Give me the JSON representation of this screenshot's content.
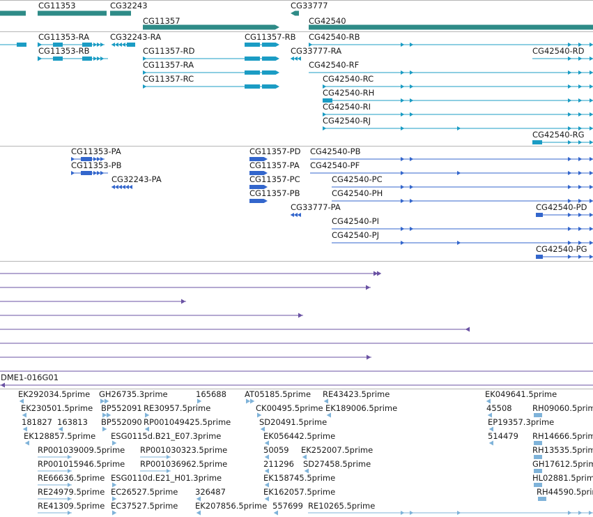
{
  "colors": {
    "gene": "#2e8b87",
    "transcript": "#1b9cc4",
    "protein": "#3366cc",
    "alignment": "#6a52a3",
    "est": "#7fb3d9",
    "divider": "#b5b5b5"
  },
  "tracks": {
    "genes": {
      "labels": [
        {
          "id": "g-cg11353",
          "text": "CG11353"
        },
        {
          "id": "g-cg32243",
          "text": "CG32243"
        },
        {
          "id": "g-cg11357",
          "text": "CG11357"
        },
        {
          "id": "g-cg33777",
          "text": "CG33777"
        },
        {
          "id": "g-cg42540",
          "text": "CG42540"
        }
      ]
    },
    "transcripts": {
      "labels": [
        {
          "id": "t-cg11353-ra",
          "text": "CG11353-RA"
        },
        {
          "id": "t-cg11353-rb",
          "text": "CG11353-RB"
        },
        {
          "id": "t-cg32243-ra",
          "text": "CG32243-RA"
        },
        {
          "id": "t-cg11357-rb",
          "text": "CG11357-RB"
        },
        {
          "id": "t-cg11357-rd",
          "text": "CG11357-RD"
        },
        {
          "id": "t-cg11357-ra",
          "text": "CG11357-RA"
        },
        {
          "id": "t-cg11357-rc",
          "text": "CG11357-RC"
        },
        {
          "id": "t-cg42540-rb",
          "text": "CG42540-RB"
        },
        {
          "id": "t-cg33777-ra",
          "text": "CG33777-RA"
        },
        {
          "id": "t-cg42540-rf",
          "text": "CG42540-RF"
        },
        {
          "id": "t-cg42540-rc",
          "text": "CG42540-RC"
        },
        {
          "id": "t-cg42540-rh",
          "text": "CG42540-RH"
        },
        {
          "id": "t-cg42540-ri",
          "text": "CG42540-RI"
        },
        {
          "id": "t-cg42540-rj",
          "text": "CG42540-RJ"
        },
        {
          "id": "t-cg42540-rd",
          "text": "CG42540-RD"
        },
        {
          "id": "t-cg42540-rg",
          "text": "CG42540-RG"
        }
      ]
    },
    "proteins": {
      "labels": [
        {
          "id": "p-cg11353-pa",
          "text": "CG11353-PA"
        },
        {
          "id": "p-cg11353-pb",
          "text": "CG11353-PB"
        },
        {
          "id": "p-cg32243-pa",
          "text": "CG32243-PA"
        },
        {
          "id": "p-cg11357-pd",
          "text": "CG11357-PD"
        },
        {
          "id": "p-cg11357-pa",
          "text": "CG11357-PA"
        },
        {
          "id": "p-cg11357-pc",
          "text": "CG11357-PC"
        },
        {
          "id": "p-cg11357-pb",
          "text": "CG11357-PB"
        },
        {
          "id": "p-cg33777-pa",
          "text": "CG33777-PA"
        },
        {
          "id": "p-cg42540-pb",
          "text": "CG42540-PB"
        },
        {
          "id": "p-cg42540-pf",
          "text": "CG42540-PF"
        },
        {
          "id": "p-cg42540-pc",
          "text": "CG42540-PC"
        },
        {
          "id": "p-cg42540-ph",
          "text": "CG42540-PH"
        },
        {
          "id": "p-cg42540-pi",
          "text": "CG42540-PI"
        },
        {
          "id": "p-cg42540-pj",
          "text": "CG42540-PJ"
        },
        {
          "id": "p-cg42540-pd",
          "text": "CG42540-PD"
        },
        {
          "id": "p-cg42540-pg",
          "text": "CG42540-PG"
        }
      ]
    },
    "alignments": {
      "labels": [
        {
          "id": "a-dme1-016g01",
          "text": "DME1-016G01"
        }
      ]
    },
    "ests": {
      "labels": [
        {
          "id": "e1",
          "text": "EK292034.5prime"
        },
        {
          "id": "e2",
          "text": "GH26735.3prime"
        },
        {
          "id": "e3",
          "text": "165688"
        },
        {
          "id": "e4",
          "text": "AT05185.5prime"
        },
        {
          "id": "e5",
          "text": "RE43423.5prime"
        },
        {
          "id": "e6",
          "text": "EK049641.5prime"
        },
        {
          "id": "e7",
          "text": "EK230501.5prime"
        },
        {
          "id": "e8",
          "text": "BP552091"
        },
        {
          "id": "e9",
          "text": "RE30957.5prime"
        },
        {
          "id": "e10",
          "text": "CK00495.5prime"
        },
        {
          "id": "e11",
          "text": "EK189006.5prime"
        },
        {
          "id": "e12",
          "text": "45508"
        },
        {
          "id": "e13",
          "text": "RH09060.5prime"
        },
        {
          "id": "e14",
          "text": "181827"
        },
        {
          "id": "e15",
          "text": "163813"
        },
        {
          "id": "e16",
          "text": "BP552090"
        },
        {
          "id": "e17",
          "text": "RP001049425.5prime"
        },
        {
          "id": "e18",
          "text": "SD20491.5prime"
        },
        {
          "id": "e19",
          "text": "EP19357.3prime"
        },
        {
          "id": "e20",
          "text": "EK128857.5prime"
        },
        {
          "id": "e21",
          "text": "ESG0115d.B21_E07.3prime"
        },
        {
          "id": "e22",
          "text": "EK056442.5prime"
        },
        {
          "id": "e23",
          "text": "514479"
        },
        {
          "id": "e24",
          "text": "RH14666.5prime"
        },
        {
          "id": "e25",
          "text": "RP001039009.5prime"
        },
        {
          "id": "e26",
          "text": "RP001030323.5prime"
        },
        {
          "id": "e27",
          "text": "50059"
        },
        {
          "id": "e28",
          "text": "EK252007.5prime"
        },
        {
          "id": "e29",
          "text": "RH13535.5prime"
        },
        {
          "id": "e30",
          "text": "RP001015946.5prime"
        },
        {
          "id": "e31",
          "text": "RP001036962.5prime"
        },
        {
          "id": "e32",
          "text": "211296"
        },
        {
          "id": "e33",
          "text": "SD27458.5prime"
        },
        {
          "id": "e34",
          "text": "GH17612.5prime"
        },
        {
          "id": "e35",
          "text": "RE66636.5prime"
        },
        {
          "id": "e36",
          "text": "ESG0110d.E21_H01.3prime"
        },
        {
          "id": "e37",
          "text": "EK158745.5prime"
        },
        {
          "id": "e38",
          "text": "HL02881.5prime"
        },
        {
          "id": "e39",
          "text": "RE24979.5prime"
        },
        {
          "id": "e40",
          "text": "EC26527.5prime"
        },
        {
          "id": "e41",
          "text": "326487"
        },
        {
          "id": "e42",
          "text": "EK162057.5prime"
        },
        {
          "id": "e43",
          "text": "RH44590.5prime"
        },
        {
          "id": "e44",
          "text": "RE41309.5prime"
        },
        {
          "id": "e45",
          "text": "EC37527.5prime"
        },
        {
          "id": "e46",
          "text": "EK207856.5prime"
        },
        {
          "id": "e47",
          "text": "557699"
        },
        {
          "id": "e48",
          "text": "RE10265.5prime"
        }
      ]
    }
  }
}
